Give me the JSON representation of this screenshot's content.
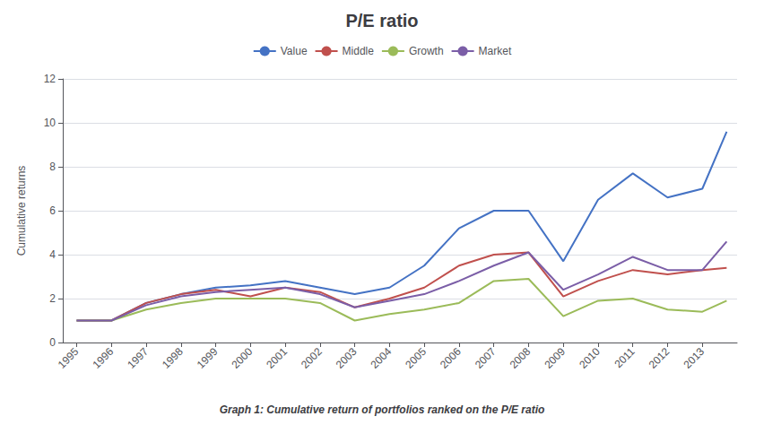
{
  "chart_data": {
    "type": "line",
    "title": "P/E ratio",
    "ylabel": "Cumulative returns",
    "caption": "Graph 1: Cumulative return of portfolios ranked on the P/E ratio",
    "x": [
      1995,
      1996,
      1997,
      1998,
      1999,
      2000,
      2001,
      2002,
      2003,
      2004,
      2005,
      2006,
      2007,
      2008,
      2009,
      2010,
      2011,
      2012,
      2013,
      2013.7
    ],
    "series": [
      {
        "name": "Value",
        "color": "#4472c4",
        "values": [
          1.0,
          1.0,
          1.8,
          2.2,
          2.5,
          2.6,
          2.8,
          2.5,
          2.2,
          2.5,
          3.5,
          5.2,
          6.0,
          6.0,
          3.7,
          6.5,
          7.7,
          6.6,
          7.0,
          9.6
        ]
      },
      {
        "name": "Middle",
        "color": "#c0504d",
        "values": [
          1.0,
          1.0,
          1.8,
          2.2,
          2.4,
          2.1,
          2.5,
          2.3,
          1.6,
          2.0,
          2.5,
          3.5,
          4.0,
          4.1,
          2.1,
          2.8,
          3.3,
          3.1,
          3.3,
          3.4
        ]
      },
      {
        "name": "Growth",
        "color": "#9bbb59",
        "values": [
          1.0,
          1.0,
          1.5,
          1.8,
          2.0,
          2.0,
          2.0,
          1.8,
          1.0,
          1.3,
          1.5,
          1.8,
          2.8,
          2.9,
          1.2,
          1.9,
          2.0,
          1.5,
          1.4,
          1.9
        ]
      },
      {
        "name": "Market",
        "color": "#7b5ea7",
        "values": [
          1.0,
          1.0,
          1.7,
          2.1,
          2.3,
          2.4,
          2.5,
          2.2,
          1.6,
          1.9,
          2.2,
          2.8,
          3.5,
          4.1,
          2.4,
          3.1,
          3.9,
          3.3,
          3.3,
          4.6
        ]
      }
    ],
    "xlim": [
      1994.6,
      2014.0
    ],
    "xticks": [
      1995,
      1996,
      1997,
      1998,
      1999,
      2000,
      2001,
      2002,
      2003,
      2004,
      2005,
      2006,
      2007,
      2008,
      2009,
      2010,
      2011,
      2012,
      2013
    ],
    "ylim": [
      0,
      12
    ],
    "yticks": [
      0,
      2,
      4,
      6,
      8,
      10,
      12
    ],
    "grid": true,
    "legend": "top"
  }
}
